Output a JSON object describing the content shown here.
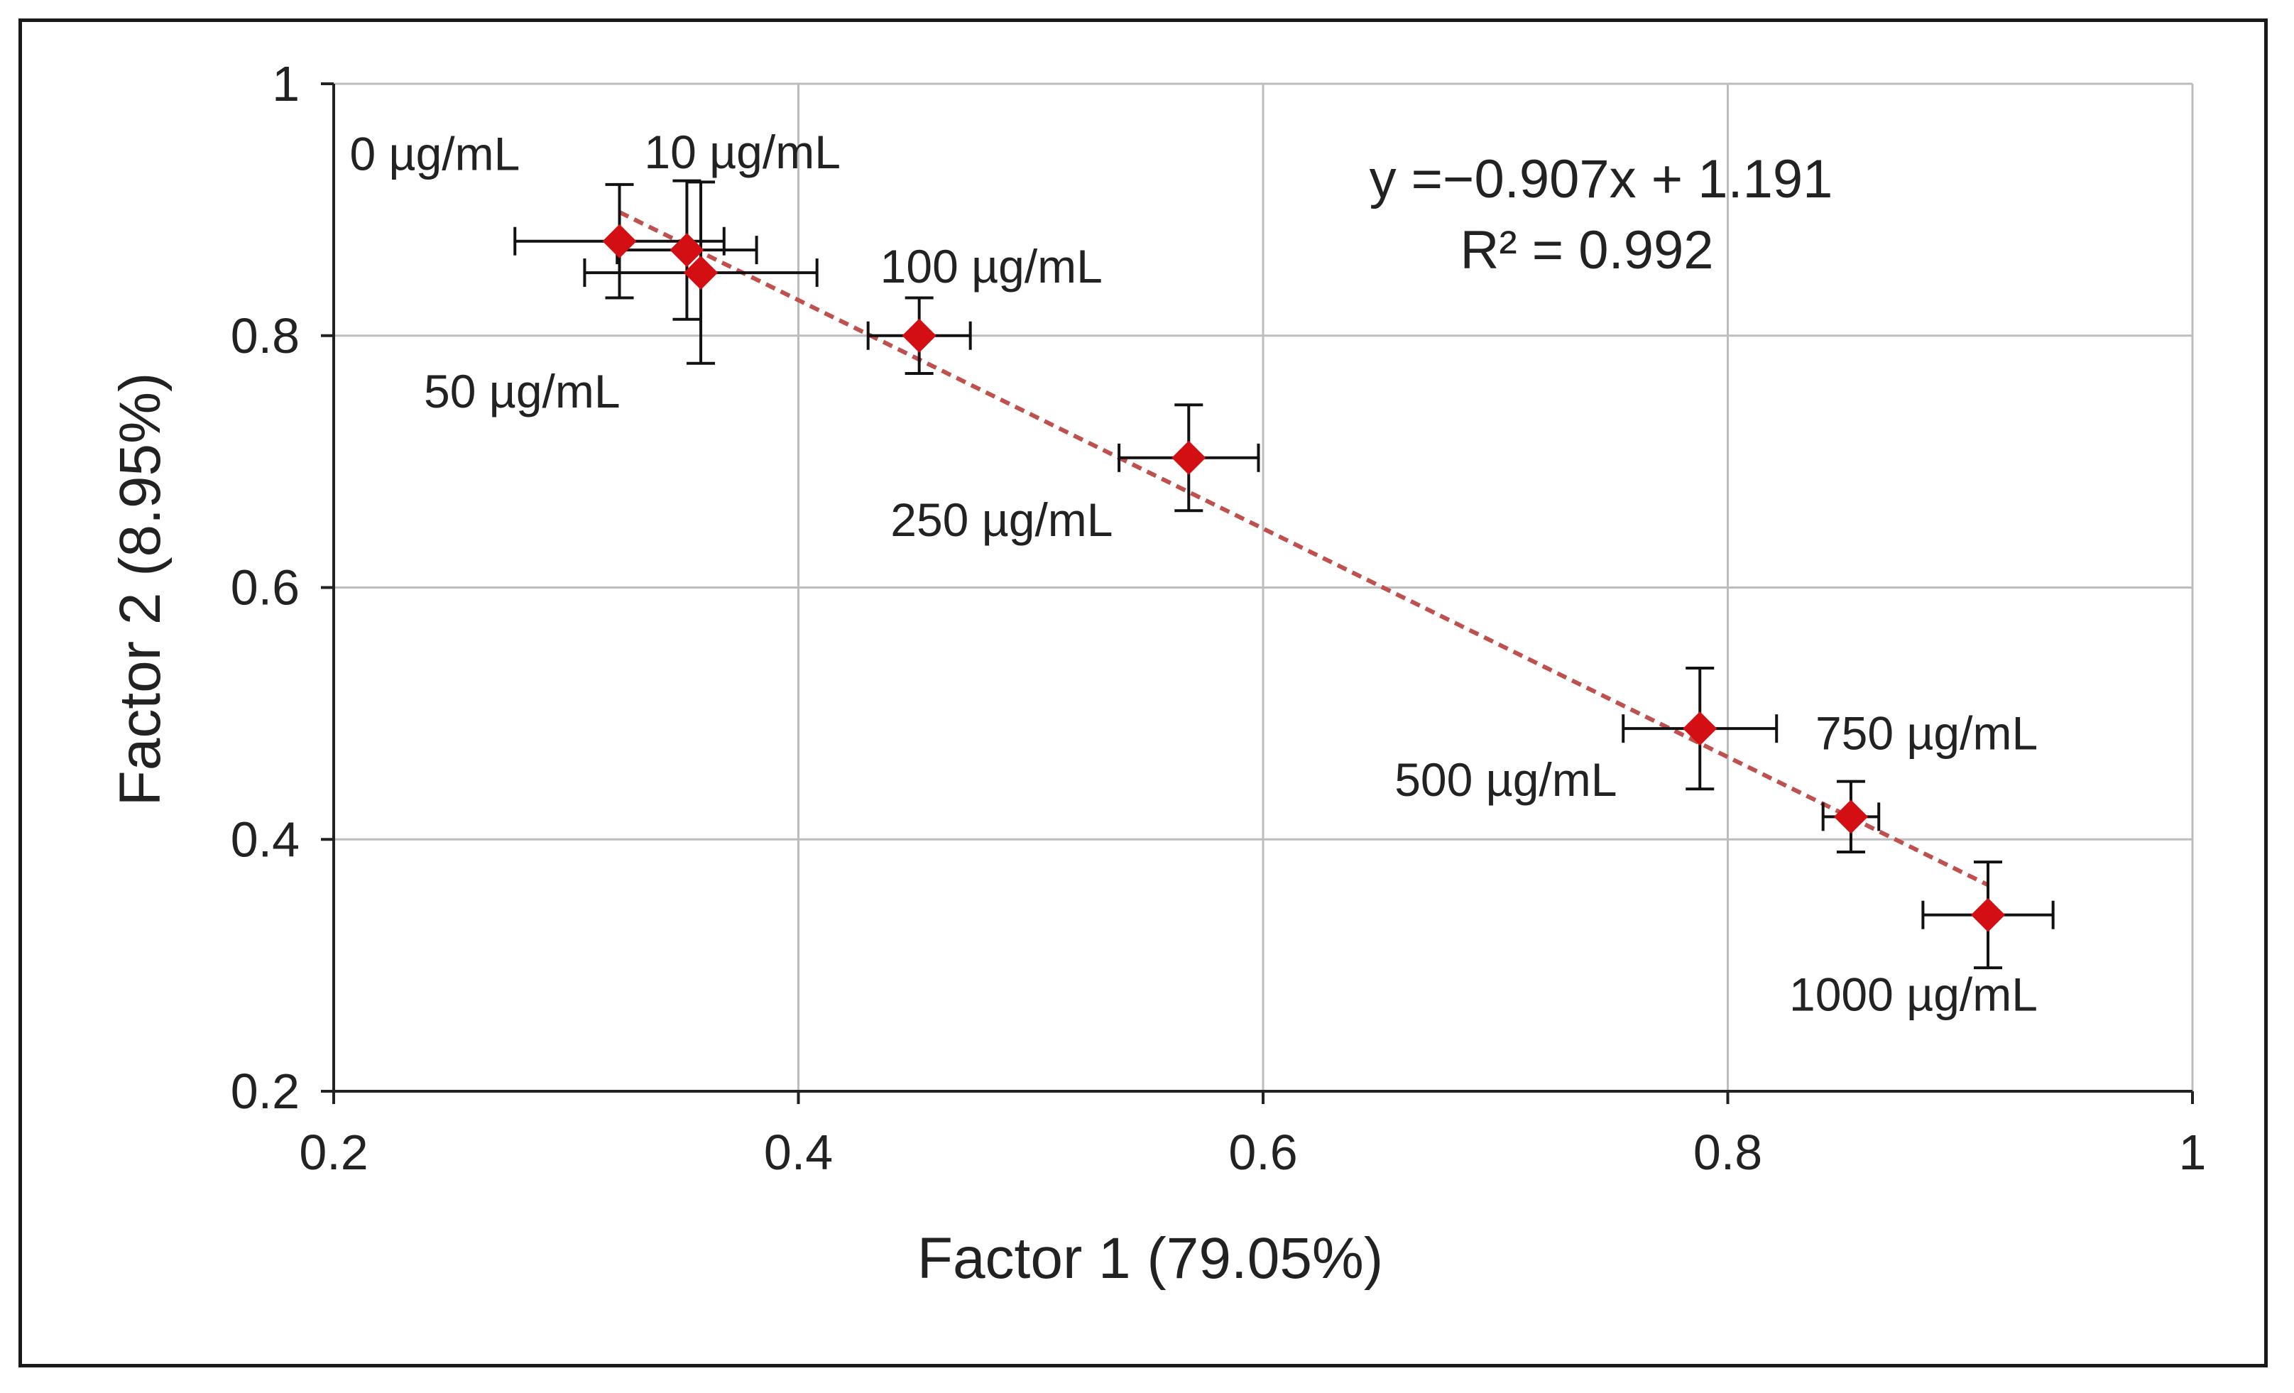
{
  "chart_data": {
    "type": "scatter",
    "xlabel": "Factor 1 (79.05%)",
    "ylabel": "Factor 2 (8.95%)",
    "xlim": [
      0.2,
      1.0
    ],
    "ylim": [
      0.2,
      1.0
    ],
    "x_ticks": [
      "0.2",
      "0.4",
      "0.6",
      "0.8",
      "1"
    ],
    "y_ticks": [
      "0.2",
      "0.4",
      "0.6",
      "0.8",
      "1"
    ],
    "grid": true,
    "marker_color": "#d40f14",
    "trendline_color": "#c0504d",
    "points": [
      {
        "label": "0 µg/mL",
        "x": 0.323,
        "y": 0.875,
        "xerr": 0.045,
        "yerr": 0.045
      },
      {
        "label": "10 µg/mL",
        "x": 0.352,
        "y": 0.868,
        "xerr": 0.03,
        "yerr": 0.055
      },
      {
        "label": "50 µg/mL",
        "x": 0.358,
        "y": 0.85,
        "xerr": 0.05,
        "yerr": 0.072
      },
      {
        "label": "100 µg/mL",
        "x": 0.452,
        "y": 0.8,
        "xerr": 0.022,
        "yerr": 0.03
      },
      {
        "label": "250 µg/mL",
        "x": 0.568,
        "y": 0.703,
        "xerr": 0.03,
        "yerr": 0.042
      },
      {
        "label": "500 µg/mL",
        "x": 0.788,
        "y": 0.488,
        "xerr": 0.033,
        "yerr": 0.048
      },
      {
        "label": "750 µg/mL",
        "x": 0.853,
        "y": 0.418,
        "xerr": 0.012,
        "yerr": 0.028
      },
      {
        "label": "1000 µg/mL",
        "x": 0.912,
        "y": 0.34,
        "xerr": 0.028,
        "yerr": 0.042
      }
    ],
    "trendline": {
      "slope": -0.907,
      "intercept": 1.191,
      "x_range": [
        0.323,
        0.912
      ]
    },
    "annotations": {
      "equation": "y =−0.907x + 1.191",
      "r_squared": "R² = 0.992"
    }
  }
}
